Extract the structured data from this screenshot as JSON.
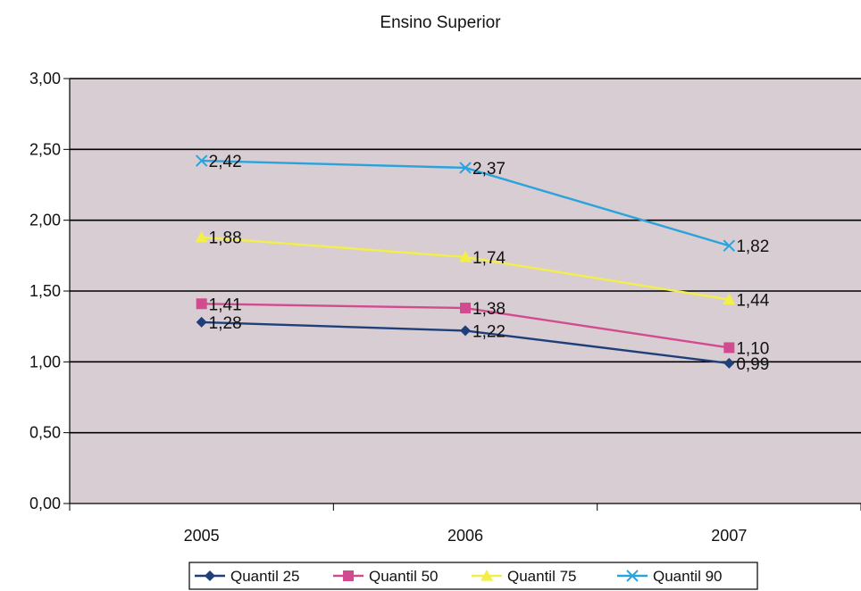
{
  "chart_data": {
    "type": "line",
    "title": "Ensino Superior",
    "categories": [
      "2005",
      "2006",
      "2007"
    ],
    "ylim": [
      0,
      3
    ],
    "yticks": [
      "0,00",
      "0,50",
      "1,00",
      "1,50",
      "2,00",
      "2,50",
      "3,00"
    ],
    "ytick_values": [
      0,
      0.5,
      1.0,
      1.5,
      2.0,
      2.5,
      3.0
    ],
    "grid": true,
    "legend_position": "bottom",
    "plot_background": "#d8cdd2",
    "series": [
      {
        "name": "Quantil 25",
        "values": [
          1.28,
          1.22,
          0.99
        ],
        "labels": [
          "1,28",
          "1,22",
          "0,99"
        ],
        "color": "#1f3f7a",
        "marker": "diamond"
      },
      {
        "name": "Quantil 50",
        "values": [
          1.41,
          1.38,
          1.1
        ],
        "labels": [
          "1,41",
          "1,38",
          "1,10"
        ],
        "color": "#d24b8f",
        "marker": "square"
      },
      {
        "name": "Quantil 75",
        "values": [
          1.88,
          1.74,
          1.44
        ],
        "labels": [
          "1,88",
          "1,74",
          "1,44"
        ],
        "color": "#f2ef4a",
        "marker": "triangle"
      },
      {
        "name": "Quantil 90",
        "values": [
          2.42,
          2.37,
          1.82
        ],
        "labels": [
          "2,42",
          "2,37",
          "1,82"
        ],
        "color": "#2aa3dd",
        "marker": "x"
      }
    ]
  }
}
